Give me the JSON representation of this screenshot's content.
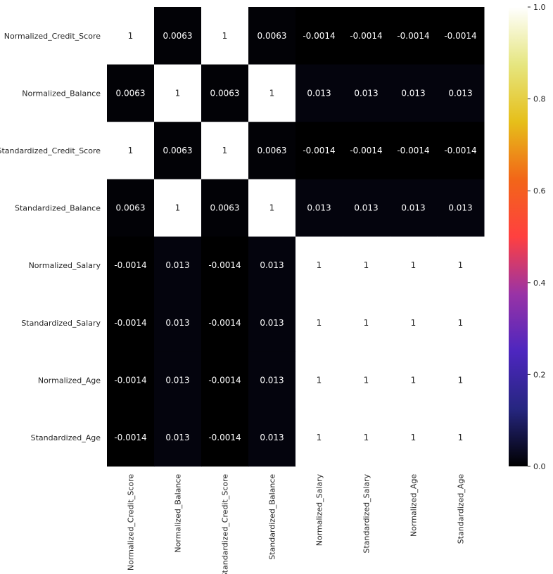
{
  "chart_data": {
    "type": "heatmap",
    "title": "",
    "rows": [
      "Normalized_Credit_Score",
      "Normalized_Balance",
      "Standardized_Credit_Score",
      "Standardized_Balance",
      "Normalized_Salary",
      "Standardized_Salary",
      "Normalized_Age",
      "Standardized_Age"
    ],
    "columns": [
      "Normalized_Credit_Score",
      "Normalized_Balance",
      "Standardized_Credit_Score",
      "Standardized_Balance",
      "Normalized_Salary",
      "Standardized_Salary",
      "Normalized_Age",
      "Standardized_Age"
    ],
    "values": [
      [
        1,
        0.0063,
        1,
        0.0063,
        -0.0014,
        -0.0014,
        -0.0014,
        -0.0014
      ],
      [
        0.0063,
        1,
        0.0063,
        1,
        0.013,
        0.013,
        0.013,
        0.013
      ],
      [
        1,
        0.0063,
        1,
        0.0063,
        -0.0014,
        -0.0014,
        -0.0014,
        -0.0014
      ],
      [
        0.0063,
        1,
        0.0063,
        1,
        0.013,
        0.013,
        0.013,
        0.013
      ],
      [
        -0.0014,
        0.013,
        -0.0014,
        0.013,
        1,
        1,
        1,
        1
      ],
      [
        -0.0014,
        0.013,
        -0.0014,
        0.013,
        1,
        1,
        1,
        1
      ],
      [
        -0.0014,
        0.013,
        -0.0014,
        0.013,
        1,
        1,
        1,
        1
      ],
      [
        -0.0014,
        0.013,
        -0.0014,
        0.013,
        1,
        1,
        1,
        1
      ]
    ],
    "annotations": [
      [
        "1",
        "0.0063",
        "1",
        "0.0063",
        "-0.0014",
        "-0.0014",
        "-0.0014",
        "-0.0014"
      ],
      [
        "0.0063",
        "1",
        "0.0063",
        "1",
        "0.013",
        "0.013",
        "0.013",
        "0.013"
      ],
      [
        "1",
        "0.0063",
        "1",
        "0.0063",
        "-0.0014",
        "-0.0014",
        "-0.0014",
        "-0.0014"
      ],
      [
        "0.0063",
        "1",
        "0.0063",
        "1",
        "0.013",
        "0.013",
        "0.013",
        "0.013"
      ],
      [
        "-0.0014",
        "0.013",
        "-0.0014",
        "0.013",
        "1",
        "1",
        "1",
        "1"
      ],
      [
        "-0.0014",
        "0.013",
        "-0.0014",
        "0.013",
        "1",
        "1",
        "1",
        "1"
      ],
      [
        "-0.0014",
        "0.013",
        "-0.0014",
        "0.013",
        "1",
        "1",
        "1",
        "1"
      ],
      [
        "-0.0014",
        "0.013",
        "-0.0014",
        "0.013",
        "1",
        "1",
        "1",
        "1"
      ]
    ],
    "colorbar": {
      "colormap": "CMRmap",
      "vmin": 0.0,
      "vmax": 1.0,
      "ticks": [
        "0.0",
        "0.2",
        "0.4",
        "0.6",
        "0.8",
        "1.0"
      ],
      "tick_values": [
        0.0,
        0.2,
        0.4,
        0.6,
        0.8,
        1.0
      ]
    },
    "grid": false,
    "legend": "colorbar-right"
  },
  "colors": {
    "background": "#ffffff",
    "tick_text": "#262626",
    "annot_on_dark": "#ffffff",
    "annot_on_light": "#262626"
  }
}
